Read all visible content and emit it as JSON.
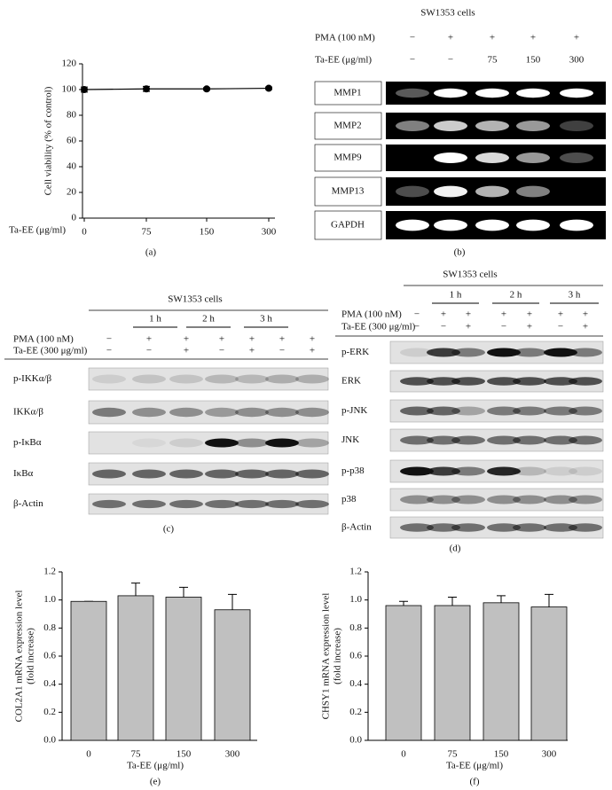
{
  "chart_data": [
    {
      "type": "line",
      "caption": "(a)",
      "ylabel": [
        "Cell viability (% of control)"
      ],
      "xlabel": "Ta-EE (μg/ml)",
      "categories": [
        "0",
        "75",
        "150",
        "300"
      ],
      "values": [
        100,
        100.5,
        100.5,
        101
      ],
      "errors": [
        2,
        2,
        1,
        1
      ],
      "ylim": [
        0,
        120
      ],
      "yticks": [
        0,
        20,
        40,
        60,
        80,
        100,
        120
      ],
      "color": "#000000"
    },
    {
      "type": "bar",
      "caption": "(e)",
      "ylabel": [
        "COL2A1 mRNA expression level",
        "(fold increase)"
      ],
      "xlabel": "Ta-EE (μg/ml)",
      "categories": [
        "0",
        "75",
        "150",
        "300"
      ],
      "values": [
        0.99,
        1.03,
        1.02,
        0.93
      ],
      "errors": [
        0,
        0.09,
        0.07,
        0.11
      ],
      "ylim": [
        0,
        1.2
      ],
      "yticks": [
        {
          "value": 0,
          "label": "0.0"
        },
        0.2,
        0.4,
        0.6,
        0.8,
        {
          "value": 1,
          "label": "1.0"
        },
        1.2
      ],
      "color": "#c0c0c0"
    },
    {
      "type": "bar",
      "caption": "(f)",
      "ylabel": [
        "CHSY1 mRNA expression level",
        "(fold increase)"
      ],
      "xlabel": "Ta-EE (μg/ml)",
      "categories": [
        "0",
        "75",
        "150",
        "300"
      ],
      "values": [
        0.96,
        0.96,
        0.98,
        0.95
      ],
      "errors": [
        0.03,
        0.06,
        0.05,
        0.09
      ],
      "ylim": [
        0,
        1.2
      ],
      "yticks": [
        {
          "value": 0,
          "label": "0.0"
        },
        0.2,
        0.4,
        0.6,
        0.8,
        {
          "value": 1,
          "label": "1.0"
        },
        1.2
      ],
      "color": "#c0c0c0"
    }
  ],
  "blots": [
    {
      "caption": "(b)",
      "title": "SW1353 cells",
      "time_groups": [],
      "conditions": [
        {
          "label": "PMA (100 nM)",
          "values": [
            "−",
            "+",
            "+",
            "+",
            "+"
          ]
        },
        {
          "label": "Ta-EE (μg/ml)",
          "values": [
            "−",
            "−",
            "75",
            "150",
            "300"
          ]
        }
      ],
      "bands": [
        "MMP1",
        "MMP2",
        "MMP9",
        "MMP13",
        "GAPDH"
      ]
    },
    {
      "caption": "(c)",
      "title": "SW1353 cells",
      "time_groups": [
        "1 h",
        "2 h",
        "3 h"
      ],
      "conditions": [
        {
          "label": "PMA (100 nM)",
          "values": [
            "−",
            "+",
            "+",
            "+",
            "+",
            "+",
            "+"
          ]
        },
        {
          "label": "Ta-EE (300 μg/ml)",
          "values": [
            "−",
            "−",
            "+",
            "−",
            "+",
            "−",
            "+"
          ]
        }
      ],
      "bands": [
        "p-IKKα/β",
        "IKKα/β",
        "p-IκBα",
        "IκBα",
        "β-Actin"
      ]
    },
    {
      "caption": "(d)",
      "title": "SW1353 cells",
      "time_groups": [
        "1 h",
        "2 h",
        "3 h"
      ],
      "conditions": [
        {
          "label": "PMA (100 nM)",
          "values": [
            "−",
            "+",
            "+",
            "+",
            "+",
            "+",
            "+"
          ]
        },
        {
          "label": "Ta-EE (300 μg/ml)",
          "values": [
            "−",
            "−",
            "+",
            "−",
            "+",
            "−",
            "+"
          ]
        }
      ],
      "bands": [
        "p-ERK",
        "ERK",
        "p-JNK",
        "JNK",
        "p-p38",
        "p38",
        "β-Actin"
      ]
    }
  ]
}
